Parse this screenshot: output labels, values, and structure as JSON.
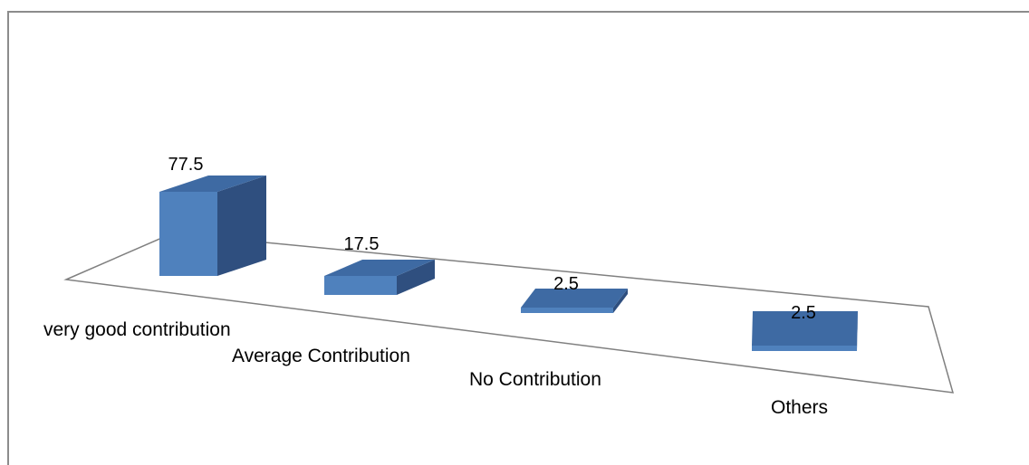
{
  "chart_data": {
    "type": "bar",
    "style": "3d-column",
    "categories": [
      "very good contribution",
      "Average Contribution",
      "No Contribution",
      "Others"
    ],
    "values": [
      77.5,
      17.5,
      2.5,
      2.5
    ],
    "data_labels": [
      "77.5",
      "17.5",
      "2.5",
      "2.5"
    ],
    "title": "",
    "xlabel": "",
    "ylabel": "",
    "grid": false,
    "legend": "none",
    "colors": {
      "bar_front": "#4F81BD",
      "bar_side": "#2F4F7F",
      "bar_top": "#3E6AA3",
      "floor_stroke": "#808080",
      "frame_stroke": "#8C8C8C",
      "text": "#000000"
    }
  }
}
